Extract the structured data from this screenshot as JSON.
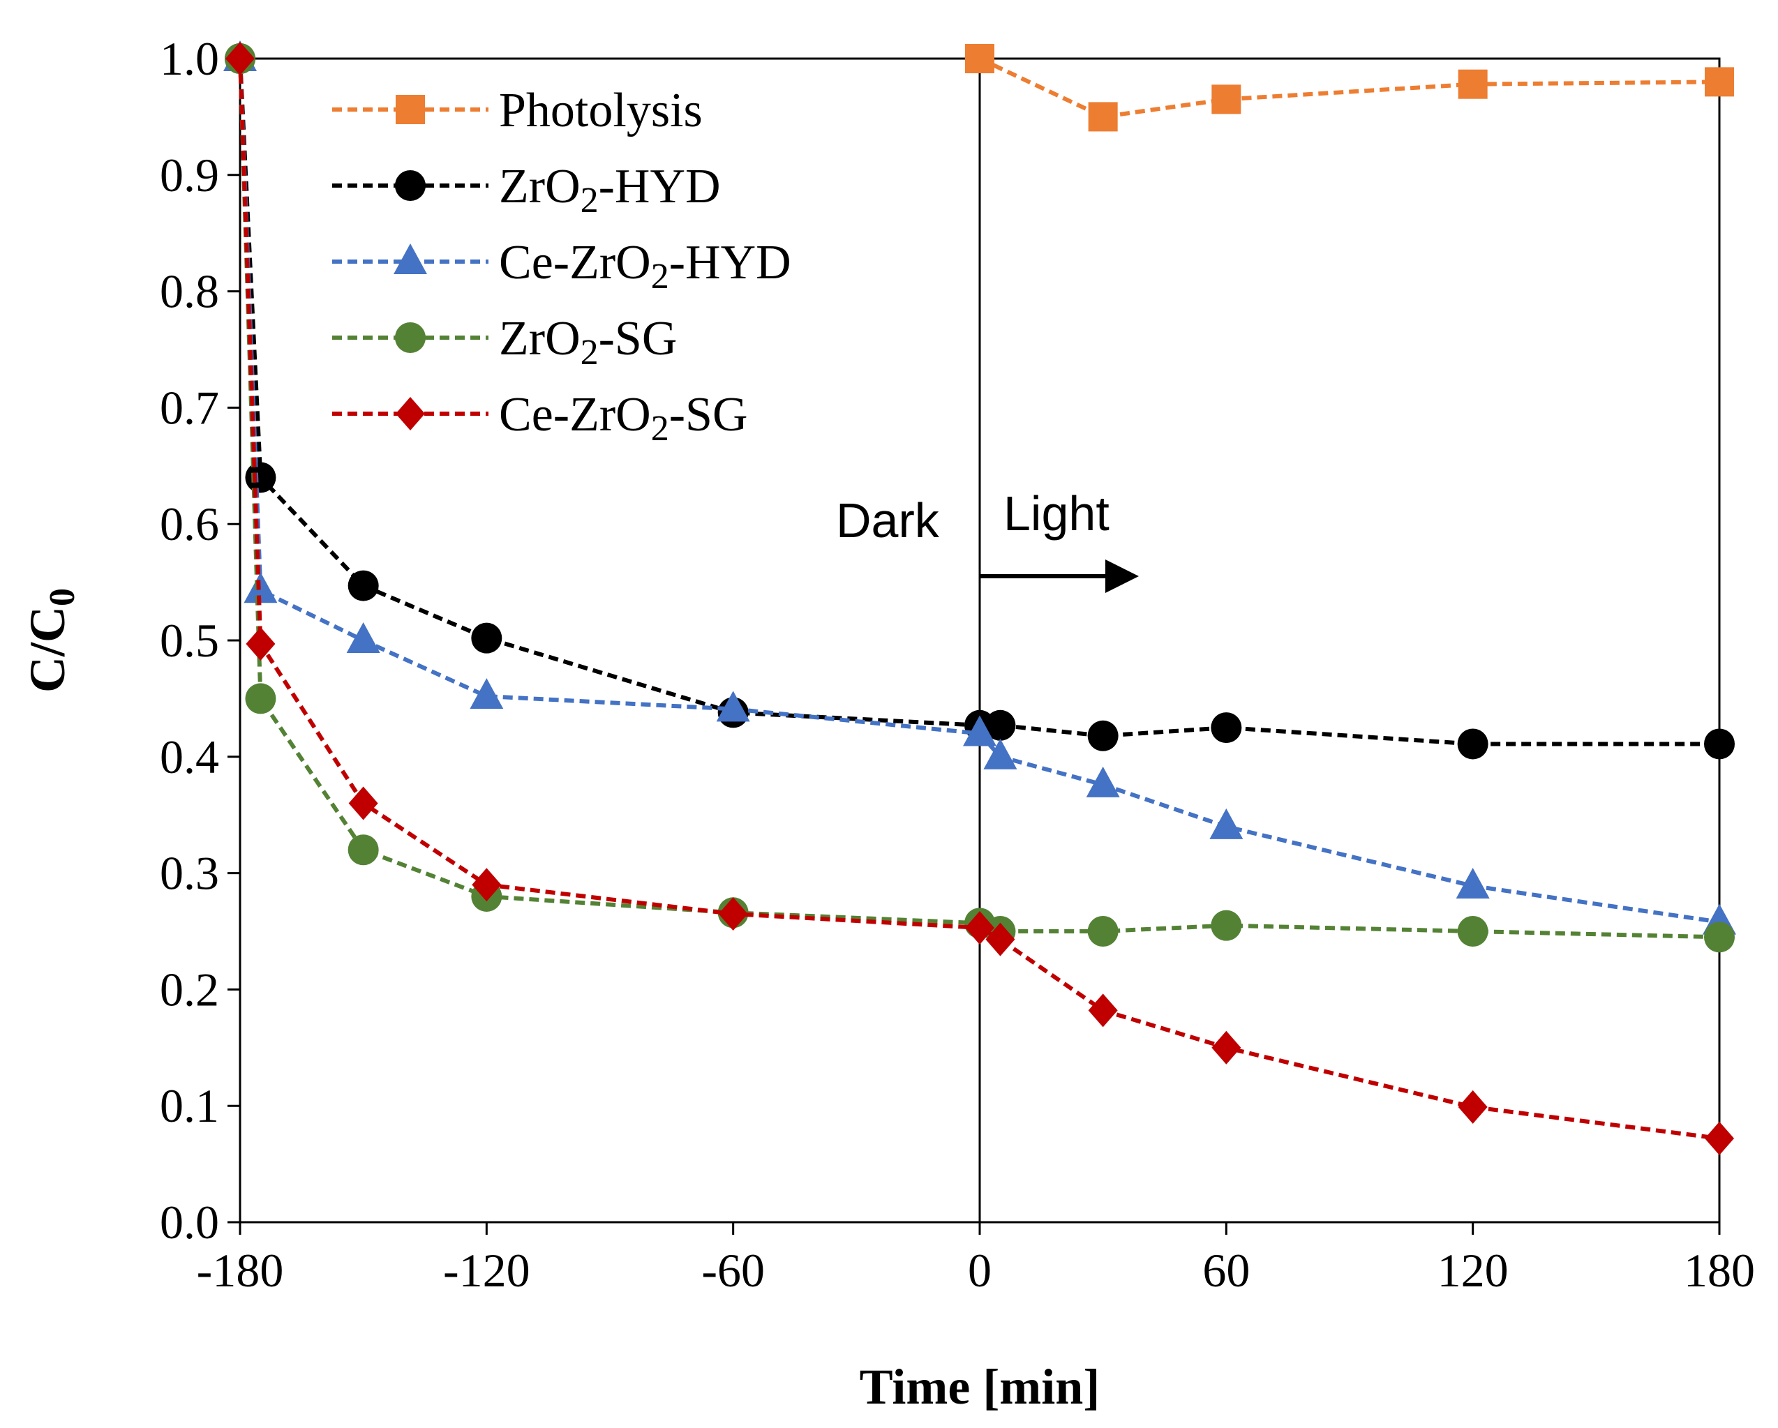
{
  "chart_data": {
    "type": "line",
    "title": "",
    "xlabel": "Time [min]",
    "ylabel_main": "C/C",
    "ylabel_sub": "0",
    "xlim": [
      -180,
      180
    ],
    "ylim": [
      0,
      1
    ],
    "xticks": [
      -180,
      -120,
      -60,
      0,
      60,
      120,
      180
    ],
    "xtick_labels": [
      "-180",
      "-120",
      "-60",
      "0",
      "60",
      "120",
      "180"
    ],
    "yticks": [
      0,
      0.1,
      0.2,
      0.3,
      0.4,
      0.5,
      0.6,
      0.7,
      0.8,
      0.9,
      1.0
    ],
    "ytick_labels": [
      "0.0",
      "0.1",
      "0.2",
      "0.3",
      "0.4",
      "0.5",
      "0.6",
      "0.7",
      "0.8",
      "0.9",
      "1.0"
    ],
    "grid": false,
    "legend_position": "top-left",
    "annotations": {
      "dark": "Dark",
      "light": "Light",
      "divider_x": 0
    },
    "series": [
      {
        "name": "Photolysis",
        "name_parts": [
          "Photolysis"
        ],
        "color": "#ED7D31",
        "marker": "square",
        "x": [
          0,
          30,
          60,
          120,
          180
        ],
        "y": [
          1.0,
          0.95,
          0.965,
          0.978,
          0.98
        ]
      },
      {
        "name": "ZrO2-HYD",
        "name_parts": [
          "ZrO",
          "2",
          "-HYD"
        ],
        "color": "#000000",
        "marker": "circle",
        "x": [
          -180,
          -175,
          -150,
          -120,
          -60,
          0,
          5,
          30,
          60,
          120,
          180
        ],
        "y": [
          1.0,
          0.64,
          0.547,
          0.502,
          0.438,
          0.427,
          0.427,
          0.418,
          0.425,
          0.411,
          0.411
        ]
      },
      {
        "name": "Ce-ZrO2-HYD",
        "name_parts": [
          "Ce-ZrO",
          "2",
          "-HYD"
        ],
        "color": "#4472C4",
        "marker": "triangle",
        "x": [
          -180,
          -175,
          -150,
          -120,
          -60,
          0,
          5,
          30,
          60,
          120,
          180
        ],
        "y": [
          1.0,
          0.543,
          0.5,
          0.452,
          0.441,
          0.42,
          0.4,
          0.376,
          0.34,
          0.289,
          0.258
        ]
      },
      {
        "name": "ZrO2-SG",
        "name_parts": [
          "ZrO",
          "2",
          "-SG"
        ],
        "color": "#548235",
        "marker": "circle",
        "x": [
          -180,
          -175,
          -150,
          -120,
          -60,
          0,
          5,
          30,
          60,
          120,
          180
        ],
        "y": [
          1.0,
          0.45,
          0.32,
          0.28,
          0.266,
          0.257,
          0.25,
          0.25,
          0.255,
          0.25,
          0.245
        ]
      },
      {
        "name": "Ce-ZrO2-SG",
        "name_parts": [
          "Ce-ZrO",
          "2",
          "-SG"
        ],
        "color": "#C00000",
        "marker": "diamond",
        "x": [
          -180,
          -175,
          -150,
          -120,
          -60,
          0,
          5,
          30,
          60,
          120,
          180
        ],
        "y": [
          1.0,
          0.497,
          0.36,
          0.29,
          0.265,
          0.253,
          0.243,
          0.182,
          0.15,
          0.099,
          0.072
        ]
      }
    ]
  }
}
